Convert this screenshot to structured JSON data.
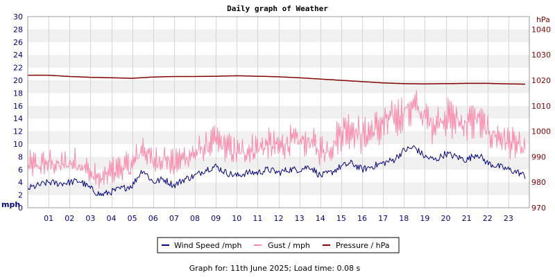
{
  "chart_data": {
    "type": "line",
    "title": "Daily graph of Weather",
    "y_unit_left": "mph",
    "y_unit_right": "hPa",
    "ylim_left": [
      0,
      30
    ],
    "yticks_left": [
      0,
      2,
      4,
      6,
      8,
      10,
      12,
      14,
      16,
      18,
      20,
      22,
      24,
      26,
      28,
      30
    ],
    "ylim_right": [
      970,
      1045
    ],
    "yticks_right": [
      970,
      980,
      990,
      1000,
      1010,
      1020,
      1030,
      1040
    ],
    "xlim": [
      0,
      24
    ],
    "x_tick_labels": [
      "01",
      "02",
      "03",
      "04",
      "05",
      "06",
      "07",
      "08",
      "09",
      "10",
      "11",
      "12",
      "13",
      "14",
      "15",
      "16",
      "17",
      "18",
      "19",
      "20",
      "21",
      "22",
      "23"
    ],
    "grid": "alternating horizontal bands every 2 mph with vertical lines each hour",
    "legend_position": "bottom",
    "footer": "Graph for: 11th June 2025; Load time: 0.08 s",
    "series": [
      {
        "name": "Wind Speed /mph",
        "color": "#000080",
        "axis": "left",
        "x": [
          0,
          0.5,
          1,
          1.5,
          2,
          2.5,
          3,
          3.5,
          4,
          4.5,
          5,
          5.5,
          6,
          6.5,
          7,
          7.5,
          8,
          8.5,
          9,
          9.5,
          10,
          10.5,
          11,
          11.5,
          12,
          12.5,
          13,
          13.5,
          14,
          14.5,
          15,
          15.5,
          16,
          16.5,
          17,
          17.5,
          18,
          18.5,
          19,
          19.5,
          20,
          20.5,
          21,
          21.5,
          22,
          22.5,
          23,
          23.5,
          23.8
        ],
        "y": [
          3,
          3.5,
          4,
          3.8,
          4,
          4.2,
          3,
          2,
          2.5,
          3,
          3.5,
          6,
          4,
          4.5,
          3.5,
          4.5,
          5,
          6,
          6.5,
          5.5,
          5,
          5.5,
          5.5,
          6,
          5.5,
          6,
          6,
          6.5,
          5,
          5.5,
          6.5,
          7,
          6,
          6.5,
          7,
          7.5,
          9,
          9.5,
          8,
          7.5,
          8.5,
          8,
          7.5,
          8.5,
          7,
          6.5,
          6,
          5.5,
          5
        ]
      },
      {
        "name": "Gust / mph",
        "color": "#ff88aa",
        "axis": "left",
        "x": [
          0,
          0.5,
          1,
          1.5,
          2,
          2.5,
          3,
          3.5,
          4,
          4.5,
          5,
          5.5,
          6,
          6.5,
          7,
          7.5,
          8,
          8.5,
          9,
          9.5,
          10,
          10.5,
          11,
          11.5,
          12,
          12.5,
          13,
          13.5,
          14,
          14.5,
          15,
          15.5,
          16,
          16.5,
          17,
          17.5,
          18,
          18.5,
          19,
          19.5,
          20,
          20.5,
          21,
          21.5,
          22,
          22.5,
          23,
          23.5,
          23.8
        ],
        "y": [
          7,
          7,
          7.5,
          7,
          7.5,
          7.5,
          5.5,
          4.5,
          6,
          6.5,
          7,
          10,
          7.5,
          8.5,
          7,
          8.5,
          9,
          10,
          11,
          10,
          9,
          9.5,
          10,
          10.5,
          10,
          11,
          11,
          11,
          9.5,
          10,
          13,
          13.5,
          12,
          13,
          14,
          15,
          16,
          17,
          15,
          14,
          15.5,
          14.5,
          14,
          15,
          12.5,
          12,
          11,
          10,
          9.5
        ]
      },
      {
        "name": "Pressure / hPa",
        "color": "#800000",
        "axis": "right",
        "x": [
          0,
          1,
          2,
          3,
          4,
          5,
          6,
          7,
          8,
          9,
          10,
          11,
          12,
          13,
          14,
          15,
          16,
          17,
          18,
          19,
          20,
          21,
          22,
          23,
          23.8
        ],
        "y": [
          1022,
          1022,
          1021.5,
          1021.2,
          1021,
          1020.8,
          1021.3,
          1021.5,
          1021.5,
          1021.6,
          1021.8,
          1021.6,
          1021.4,
          1021,
          1020.5,
          1020,
          1019.5,
          1019,
          1018.7,
          1018.6,
          1018.7,
          1018.8,
          1018.8,
          1018.6,
          1018.5
        ]
      }
    ]
  }
}
